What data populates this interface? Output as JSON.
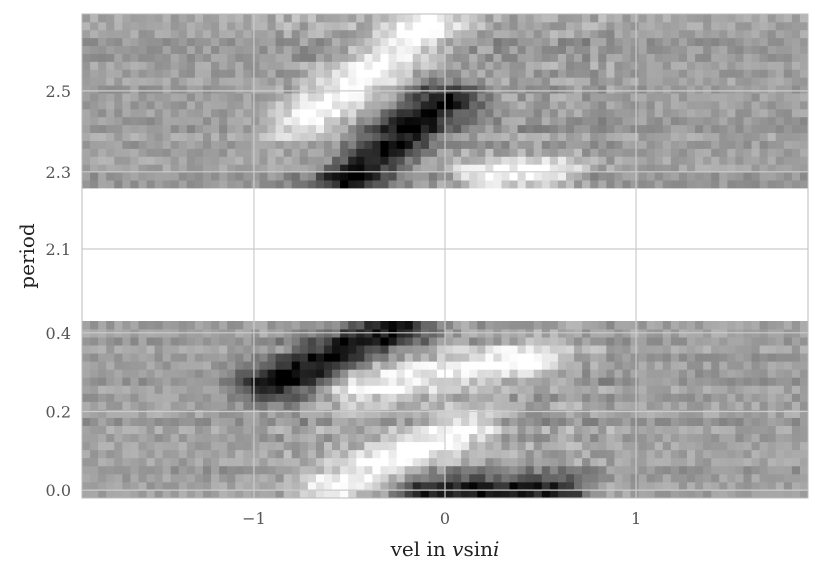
{
  "chart_data": {
    "type": "heatmap",
    "title": "",
    "xlabel": "vel in vsini",
    "xlabel_prefix": "vel in ",
    "xlabel_var": "v",
    "xlabel_fn": "sin",
    "xlabel_var2": "i",
    "ylabel": "period",
    "colormap": "grayscale",
    "grid": true,
    "xlim": [
      -1.9,
      1.9
    ],
    "x_ticks": [
      {
        "value": -1,
        "label": "−1"
      },
      {
        "value": 0,
        "label": "0"
      },
      {
        "value": 1,
        "label": "1"
      }
    ],
    "y_ticks": [
      {
        "value": 0.0,
        "label": "0.0"
      },
      {
        "value": 0.2,
        "label": "0.2"
      },
      {
        "value": 0.4,
        "label": "0.4"
      },
      {
        "value": 2.1,
        "label": "2.1"
      },
      {
        "value": 2.3,
        "label": "2.3"
      },
      {
        "value": 2.5,
        "label": "2.5"
      }
    ],
    "panels": [
      {
        "name": "lower",
        "period_range": [
          -0.02,
          0.43
        ]
      },
      {
        "name": "upper",
        "period_range": [
          2.26,
          2.69
        ]
      }
    ],
    "features": [
      {
        "kind": "bright",
        "panel": "upper",
        "from": [
          -0.75,
          2.42
        ],
        "to": [
          -0.1,
          2.66
        ],
        "width": 0.22
      },
      {
        "kind": "dark",
        "panel": "upper",
        "from": [
          -0.5,
          2.28
        ],
        "to": [
          0.0,
          2.48
        ],
        "width": 0.2
      },
      {
        "kind": "bright",
        "panel": "upper",
        "from": [
          0.2,
          2.29
        ],
        "to": [
          0.55,
          2.3
        ],
        "width": 0.18
      },
      {
        "kind": "dark",
        "panel": "lower",
        "from": [
          -0.9,
          0.27
        ],
        "to": [
          -0.25,
          0.42
        ],
        "width": 0.22
      },
      {
        "kind": "bright",
        "panel": "lower",
        "from": [
          -0.45,
          0.27
        ],
        "to": [
          0.45,
          0.33
        ],
        "width": 0.22
      },
      {
        "kind": "bright",
        "panel": "lower",
        "from": [
          -0.6,
          0.01
        ],
        "to": [
          0.1,
          0.16
        ],
        "width": 0.2
      },
      {
        "kind": "dark",
        "panel": "lower",
        "from": [
          -0.1,
          0.0
        ],
        "to": [
          0.6,
          0.0
        ],
        "width": 0.16
      }
    ]
  }
}
